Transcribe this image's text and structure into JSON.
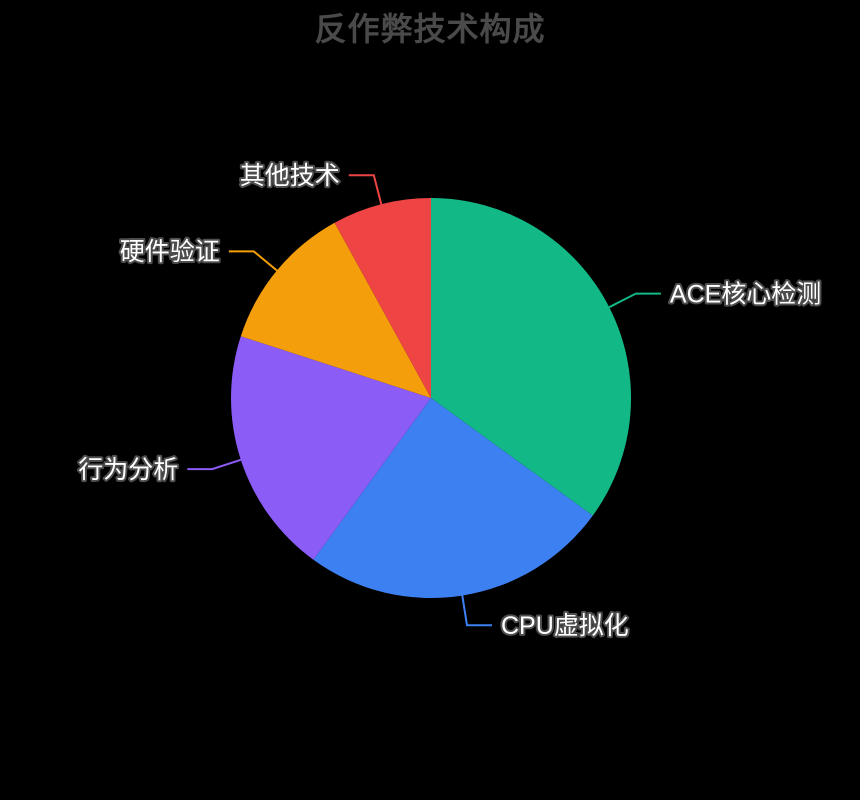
{
  "chart_data": {
    "type": "pie",
    "title": "反作弊技术构成",
    "categories": [
      "ACE核心检测",
      "CPU虚拟化",
      "行为分析",
      "硬件验证",
      "其他技术"
    ],
    "values": [
      35,
      25,
      20,
      12,
      8
    ],
    "colors": [
      "#12b886",
      "#3d80f2",
      "#8b5cf6",
      "#f59e0b",
      "#ef4444"
    ],
    "start_angle": "12-o-clock",
    "direction": "clockwise",
    "legend": "none",
    "label_position": "outside-with-leader-lines",
    "label_text_color": "#ffffff",
    "label_outline_color": "#4d4d4d",
    "title_color": "#4a4a4a",
    "background_color": "#000000"
  }
}
